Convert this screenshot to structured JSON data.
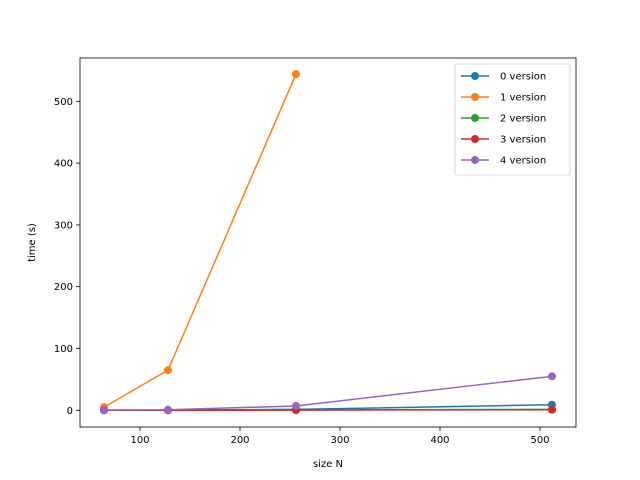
{
  "chart_data": {
    "type": "line",
    "title": "",
    "xlabel": "size N",
    "ylabel": "time (s)",
    "xlim": [
      40,
      536
    ],
    "ylim": [
      -27,
      570
    ],
    "xticks": [
      100,
      200,
      300,
      400,
      500
    ],
    "yticks": [
      0,
      100,
      200,
      300,
      400,
      500
    ],
    "grid": false,
    "legend_position": "top-right",
    "series": [
      {
        "name": "0 version",
        "color": "#1f77b4",
        "x": [
          64,
          128,
          256,
          512
        ],
        "y": [
          0.3,
          0.5,
          1.5,
          9
        ]
      },
      {
        "name": "1 version",
        "color": "#ff7f0e",
        "x": [
          64,
          128,
          256
        ],
        "y": [
          5,
          65,
          544
        ]
      },
      {
        "name": "2 version",
        "color": "#2ca02c",
        "x": [
          64,
          128,
          256,
          512
        ],
        "y": [
          0.1,
          0.2,
          0.5,
          1.5
        ]
      },
      {
        "name": "3 version",
        "color": "#d62728",
        "x": [
          64,
          128,
          256,
          512
        ],
        "y": [
          0.1,
          0.2,
          0.4,
          1
        ]
      },
      {
        "name": "4 version",
        "color": "#9467bd",
        "x": [
          64,
          128,
          256,
          512
        ],
        "y": [
          0.5,
          1,
          7,
          55
        ]
      }
    ]
  }
}
